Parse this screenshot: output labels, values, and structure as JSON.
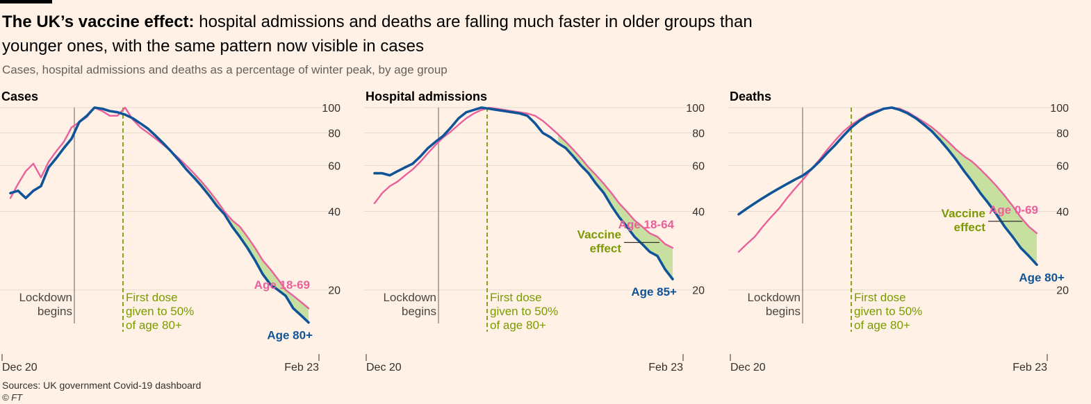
{
  "header": {
    "title_bold": "The UK’s vaccine effect:",
    "title_rest": " hospital admissions and deaths are falling much faster in older groups than younger ones, with the same pattern now visible in cases",
    "subtitle": "Cases, hospital admissions and deaths as a percentage of winter peak, by age group"
  },
  "footer": {
    "source": "Sources: UK government Covid-19 dashboard",
    "credit": "© FT"
  },
  "colors": {
    "background": "#fff1e5",
    "young": "#e9609b",
    "old": "#0f5499",
    "vaccine": "#7a9a01",
    "fill": "#c5de9b",
    "grid": "#e6d9ce",
    "annotation_text": "#4a4643"
  },
  "chart_data": [
    {
      "type": "line",
      "title": "Cases",
      "scale": "log",
      "x_labels": [
        "Dec 20",
        "Feb 23"
      ],
      "y_ticks": [
        20,
        40,
        60,
        80,
        100
      ],
      "ylim": [
        13,
        100
      ],
      "lockdown_label": [
        "Lockdown",
        "begins"
      ],
      "first_dose_label": [
        "First dose",
        "given to 50%",
        "of age 80+"
      ],
      "series": [
        {
          "name": "Age 18-69",
          "role": "young",
          "values": [
            45,
            51,
            57,
            61,
            54,
            62,
            68,
            74,
            84,
            88,
            92,
            100,
            97,
            93,
            93,
            100,
            90,
            84,
            80,
            76,
            72,
            68,
            64,
            60,
            56,
            52,
            48,
            44,
            40,
            37,
            35,
            32,
            29,
            26,
            24,
            22,
            20,
            19,
            18,
            17
          ]
        },
        {
          "name": "Age 80+",
          "role": "old",
          "values": [
            47,
            48,
            45,
            48,
            50,
            59,
            64,
            70,
            76,
            88,
            93,
            100,
            99,
            97,
            96,
            94,
            91,
            87,
            83,
            78,
            73,
            68,
            63,
            58,
            54,
            50,
            46,
            42,
            39,
            35,
            32,
            29,
            26,
            23,
            21,
            20,
            19,
            17,
            16,
            15
          ]
        }
      ],
      "vaccine_label": null
    },
    {
      "type": "line",
      "title": "Hospital admissions",
      "scale": "log",
      "x_labels": [
        "Dec 20",
        "Feb 23"
      ],
      "y_ticks": [
        20,
        40,
        60,
        80,
        100
      ],
      "ylim": [
        13,
        100
      ],
      "lockdown_label": [
        "Lockdown",
        "begins"
      ],
      "first_dose_label": [
        "First dose",
        "given to 50%",
        "of age 80+"
      ],
      "series": [
        {
          "name": "Age 18-64",
          "role": "young",
          "values": [
            43,
            47,
            50,
            52,
            55,
            58,
            62,
            67,
            72,
            77,
            81,
            86,
            91,
            95,
            98,
            100,
            99,
            98,
            97,
            96,
            95,
            93,
            89,
            84,
            79,
            74,
            69,
            64,
            59,
            55,
            51,
            47,
            43,
            40,
            37,
            35,
            33,
            32,
            30,
            29
          ]
        },
        {
          "name": "Age 85+",
          "role": "old",
          "values": [
            56,
            56,
            55,
            57,
            59,
            61,
            65,
            70,
            74,
            78,
            84,
            91,
            96,
            98,
            100,
            99,
            98,
            97,
            96,
            95,
            93,
            87,
            80,
            77,
            73,
            70,
            65,
            60,
            56,
            51,
            47,
            42,
            38,
            35,
            32,
            30,
            28,
            27,
            24,
            22
          ]
        }
      ],
      "vaccine_label": [
        "Vaccine",
        "effect"
      ]
    },
    {
      "type": "line",
      "title": "Deaths",
      "scale": "log",
      "x_labels": [
        "Dec 20",
        "Feb 23"
      ],
      "y_ticks": [
        20,
        40,
        60,
        80,
        100
      ],
      "ylim": [
        13,
        100
      ],
      "lockdown_label": [
        "Lockdown",
        "begins"
      ],
      "first_dose_label": [
        "First dose",
        "given to 50%",
        "of age 80+"
      ],
      "series": [
        {
          "name": "Age 0-69",
          "role": "young",
          "values": [
            28,
            30,
            32,
            35,
            38,
            41,
            45,
            49,
            53,
            58,
            63,
            69,
            75,
            81,
            86,
            90,
            94,
            97,
            99,
            100,
            99,
            96,
            92,
            88,
            84,
            79,
            74,
            69,
            65,
            62,
            58,
            54,
            50,
            46,
            42,
            38,
            35,
            33
          ]
        },
        {
          "name": "Age 80+",
          "role": "old",
          "values": [
            39,
            41,
            43,
            45,
            47,
            49,
            51,
            53,
            55,
            58,
            62,
            67,
            72,
            78,
            84,
            89,
            93,
            96,
            99,
            100,
            98,
            95,
            91,
            86,
            81,
            75,
            69,
            63,
            57,
            52,
            47,
            43,
            39,
            35,
            32,
            29,
            27,
            25
          ]
        }
      ],
      "vaccine_label": [
        "Vaccine",
        "effect"
      ]
    }
  ]
}
